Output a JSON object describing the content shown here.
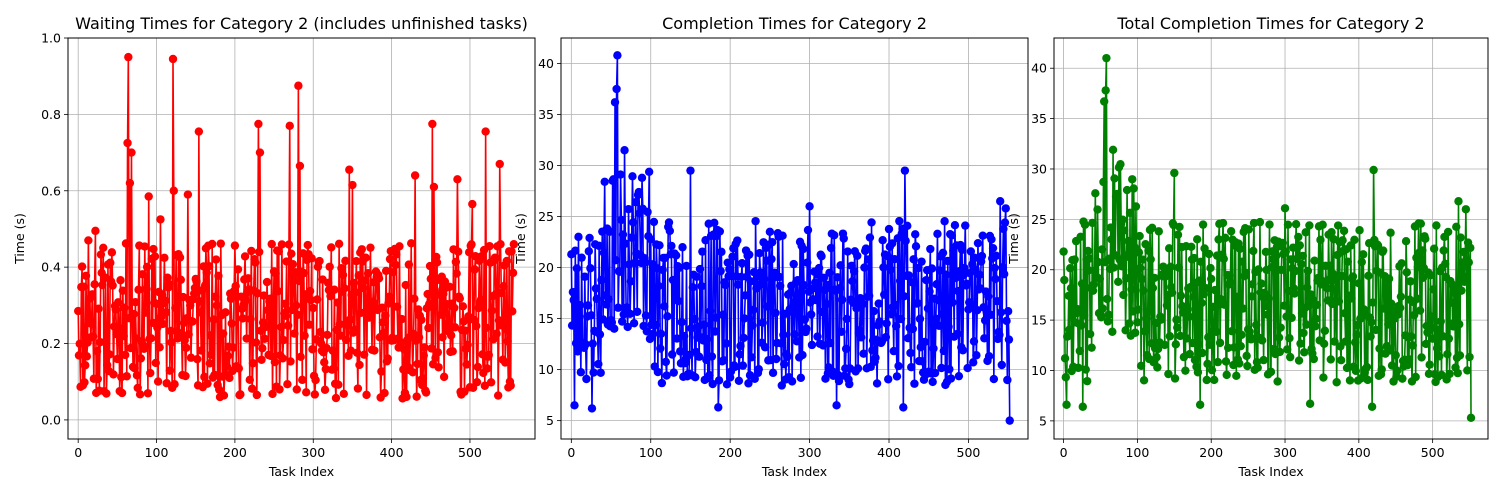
{
  "chart_data": [
    {
      "type": "line",
      "title": "Waiting Times for Category 2 (includes unfinished tasks)",
      "xlabel": "Task Index",
      "ylabel": "Time (s)",
      "xlim": [
        -13,
        583
      ],
      "ylim": [
        -0.05,
        1.0
      ],
      "xticks": [
        0,
        100,
        200,
        300,
        400,
        500
      ],
      "yticks": [
        0.0,
        0.2,
        0.4,
        0.6,
        0.8,
        1.0
      ],
      "ytick_decimals": 1,
      "grid": true,
      "series": [
        {
          "color": "#ff0000",
          "marker": "circle",
          "n": 557,
          "x_step": 1,
          "base": 0.26,
          "spread": 0.24,
          "seed": 11,
          "min": 0.0,
          "max": 0.95,
          "spikes": [
            {
              "x": 0,
              "y": 0.285
            },
            {
              "x": 13,
              "y": 0.47
            },
            {
              "x": 22,
              "y": 0.495
            },
            {
              "x": 63,
              "y": 0.725
            },
            {
              "x": 64,
              "y": 0.95
            },
            {
              "x": 66,
              "y": 0.62
            },
            {
              "x": 68,
              "y": 0.7
            },
            {
              "x": 90,
              "y": 0.585
            },
            {
              "x": 105,
              "y": 0.525
            },
            {
              "x": 121,
              "y": 0.945
            },
            {
              "x": 122,
              "y": 0.6
            },
            {
              "x": 140,
              "y": 0.59
            },
            {
              "x": 154,
              "y": 0.755
            },
            {
              "x": 230,
              "y": 0.775
            },
            {
              "x": 232,
              "y": 0.7
            },
            {
              "x": 270,
              "y": 0.77
            },
            {
              "x": 281,
              "y": 0.875
            },
            {
              "x": 283,
              "y": 0.665
            },
            {
              "x": 346,
              "y": 0.655
            },
            {
              "x": 350,
              "y": 0.615
            },
            {
              "x": 430,
              "y": 0.64
            },
            {
              "x": 452,
              "y": 0.775
            },
            {
              "x": 454,
              "y": 0.61
            },
            {
              "x": 484,
              "y": 0.63
            },
            {
              "x": 503,
              "y": 0.565
            },
            {
              "x": 520,
              "y": 0.755
            },
            {
              "x": 538,
              "y": 0.67
            },
            {
              "x": 557,
              "y": 0.66
            }
          ]
        }
      ]
    },
    {
      "type": "line",
      "title": "Completion Times for Category 2",
      "xlabel": "Task Index",
      "ylabel": "Time (s)",
      "xlim": [
        -13,
        575
      ],
      "ylim": [
        3.2,
        42.5
      ],
      "xticks": [
        0,
        100,
        200,
        300,
        400,
        500
      ],
      "yticks": [
        5,
        10,
        15,
        20,
        25,
        30,
        35,
        40
      ],
      "ytick_decimals": 0,
      "grid": true,
      "series": [
        {
          "color": "#0000ff",
          "marker": "circle",
          "n": 553,
          "x_step": 1,
          "base": 16.5,
          "spread": 9.5,
          "seed": 23,
          "min": 5.0,
          "max": 41.0,
          "bump": {
            "from": 40,
            "to": 100,
            "add": 6.5
          },
          "spikes": [
            {
              "x": 0,
              "y": 21.3
            },
            {
              "x": 4,
              "y": 6.5
            },
            {
              "x": 26,
              "y": 6.2
            },
            {
              "x": 55,
              "y": 36.2
            },
            {
              "x": 57,
              "y": 37.5
            },
            {
              "x": 58,
              "y": 40.8
            },
            {
              "x": 67,
              "y": 31.5
            },
            {
              "x": 150,
              "y": 29.5
            },
            {
              "x": 185,
              "y": 6.3
            },
            {
              "x": 300,
              "y": 26.0
            },
            {
              "x": 334,
              "y": 6.5
            },
            {
              "x": 420,
              "y": 29.5
            },
            {
              "x": 418,
              "y": 6.3
            },
            {
              "x": 540,
              "y": 26.5
            },
            {
              "x": 547,
              "y": 25.8
            },
            {
              "x": 552,
              "y": 5.0
            }
          ]
        }
      ]
    },
    {
      "type": "line",
      "title": "Total Completion Times for Category 2",
      "xlabel": "Task Index",
      "ylabel": "Time (s)",
      "xlim": [
        -13,
        575
      ],
      "ylim": [
        3.2,
        43.0
      ],
      "xticks": [
        0,
        100,
        200,
        300,
        400,
        500
      ],
      "yticks": [
        5,
        10,
        15,
        20,
        25,
        30,
        35,
        40
      ],
      "ytick_decimals": 0,
      "grid": true,
      "series": [
        {
          "color": "#008000",
          "marker": "circle",
          "n": 553,
          "x_step": 1,
          "base": 16.8,
          "spread": 9.5,
          "seed": 37,
          "min": 5.2,
          "max": 41.2,
          "bump": {
            "from": 40,
            "to": 100,
            "add": 6.5
          },
          "spikes": [
            {
              "x": 0,
              "y": 21.8
            },
            {
              "x": 4,
              "y": 6.6
            },
            {
              "x": 26,
              "y": 6.4
            },
            {
              "x": 55,
              "y": 36.7
            },
            {
              "x": 57,
              "y": 37.8
            },
            {
              "x": 58,
              "y": 41.0
            },
            {
              "x": 67,
              "y": 31.9
            },
            {
              "x": 150,
              "y": 29.6
            },
            {
              "x": 185,
              "y": 6.6
            },
            {
              "x": 300,
              "y": 26.1
            },
            {
              "x": 334,
              "y": 6.7
            },
            {
              "x": 420,
              "y": 29.9
            },
            {
              "x": 418,
              "y": 6.4
            },
            {
              "x": 535,
              "y": 26.8
            },
            {
              "x": 545,
              "y": 26.0
            },
            {
              "x": 552,
              "y": 5.3
            }
          ]
        }
      ]
    }
  ]
}
